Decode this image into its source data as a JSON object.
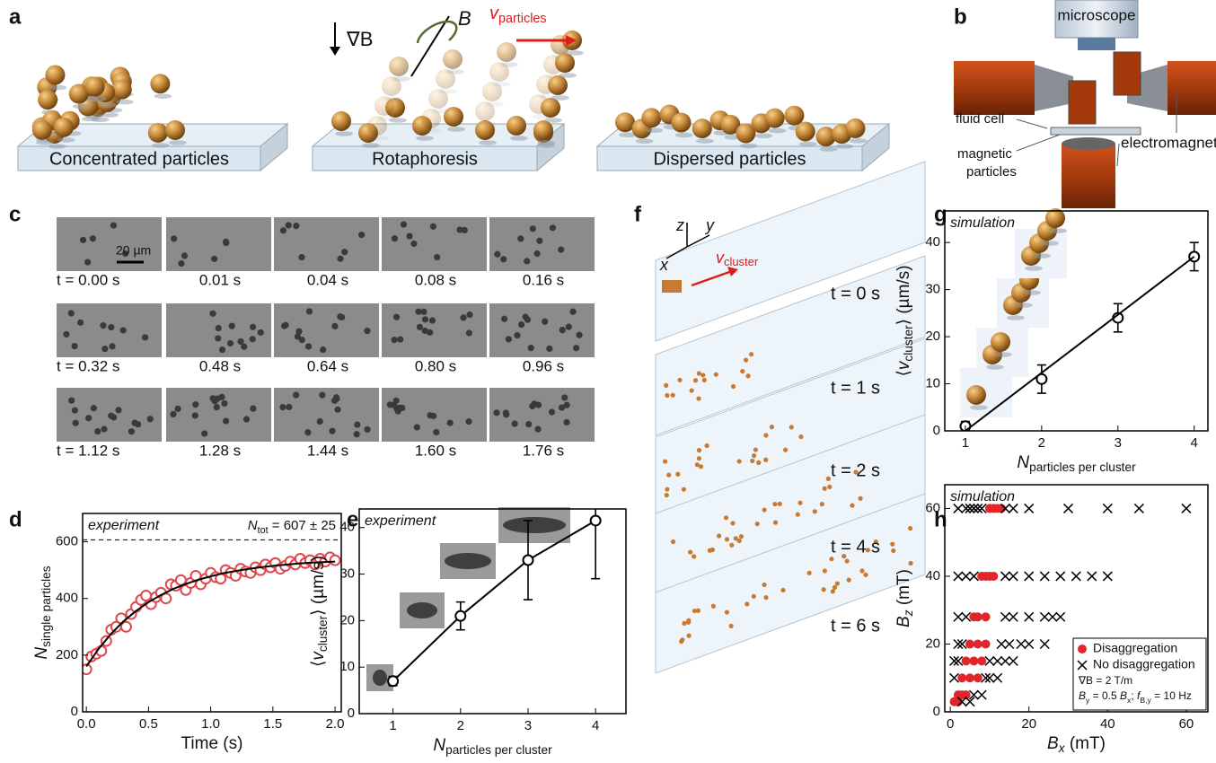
{
  "panel_labels": [
    "a",
    "b",
    "c",
    "d",
    "e",
    "f",
    "g",
    "h"
  ],
  "panel_a": {
    "slab_labels": [
      "Concentrated particles",
      "Rotaphoresis",
      "Dispersed particles"
    ],
    "gradient_label": [
      {
        "text": "∇"
      },
      {
        "text": "B"
      }
    ],
    "field_label": [
      {
        "text": "B",
        "italic": true
      }
    ],
    "velocity_label": [
      {
        "text": "v",
        "italic": true
      },
      {
        "text": "particles",
        "sub": true
      }
    ]
  },
  "panel_b": {
    "microscope": "microscope",
    "fluid_cell": "fluid cell",
    "magnetic_particles": [
      "magnetic",
      "particles"
    ],
    "electromagnet": "electromagnet"
  },
  "panel_c": {
    "scale_bar": "20 µm",
    "times": [
      "t = 0.00 s",
      "0.01 s",
      "0.04 s",
      "0.08 s",
      "0.16 s",
      "t = 0.32 s",
      "0.48 s",
      "0.64 s",
      "0.80 s",
      "0.96 s",
      "t = 1.12 s",
      "1.28 s",
      "1.44 s",
      "1.60 s",
      "1.76 s"
    ]
  },
  "panel_f": {
    "axes": [
      "z",
      "y",
      "x"
    ],
    "velocity_label": [
      {
        "text": "v",
        "italic": true
      },
      {
        "text": "cluster",
        "sub": true
      }
    ],
    "times": [
      "t = 0 s",
      "t = 1 s",
      "t = 2 s",
      "t = 4 s",
      "t = 6 s"
    ]
  },
  "chart_data": [
    {
      "type": "scatter",
      "annotations": [
        "experiment"
      ],
      "reference_label": [
        {
          "text": "N",
          "italic": true
        },
        {
          "text": "tot",
          "sub": true
        },
        {
          "text": " = 607 ± 25"
        }
      ],
      "reference_line": 607,
      "x_label": [
        {
          "text": "Time (s)"
        }
      ],
      "y_label": [
        {
          "text": "N",
          "italic": true
        },
        {
          "text": "single particles",
          "sub": true
        }
      ],
      "xlim": [
        -0.03,
        2.05
      ],
      "ylim": [
        0,
        700
      ],
      "xticks": [
        {
          "value": 0,
          "label": "0.0"
        },
        0.5,
        {
          "value": 1,
          "label": "1.0"
        },
        1.5,
        {
          "value": 2,
          "label": "2.0"
        }
      ],
      "yticks": [
        0,
        200,
        400,
        600
      ],
      "series": [
        {
          "color": "#e0474c",
          "marker": "open-circle",
          "x": [
            0,
            0.04,
            0.08,
            0.12,
            0.16,
            0.2,
            0.24,
            0.28,
            0.32,
            0.36,
            0.4,
            0.44,
            0.48,
            0.52,
            0.56,
            0.6,
            0.64,
            0.68,
            0.72,
            0.76,
            0.8,
            0.84,
            0.88,
            0.92,
            0.96,
            1.0,
            1.04,
            1.08,
            1.12,
            1.16,
            1.2,
            1.24,
            1.28,
            1.32,
            1.36,
            1.4,
            1.44,
            1.48,
            1.52,
            1.56,
            1.6,
            1.64,
            1.68,
            1.72,
            1.76,
            1.8,
            1.84,
            1.88,
            1.92,
            1.96,
            2.0
          ],
          "values": [
            150,
            195,
            205,
            215,
            250,
            290,
            300,
            330,
            300,
            345,
            370,
            395,
            410,
            380,
            405,
            420,
            400,
            450,
            445,
            465,
            430,
            455,
            480,
            450,
            470,
            490,
            475,
            470,
            500,
            490,
            480,
            505,
            495,
            490,
            510,
            500,
            520,
            510,
            525,
            505,
            515,
            530,
            520,
            540,
            525,
            535,
            520,
            540,
            530,
            545,
            535
          ]
        },
        {
          "color": "#000000",
          "style": "line",
          "x": [
            0,
            0.1,
            0.2,
            0.3,
            0.4,
            0.5,
            0.6,
            0.7,
            0.8,
            0.9,
            1.0,
            1.1,
            1.2,
            1.3,
            1.4,
            1.5,
            1.6,
            1.7,
            1.8,
            1.9,
            2.0
          ],
          "values": [
            160,
            223,
            276,
            320,
            356,
            387,
            412,
            434,
            451,
            466,
            478,
            489,
            497,
            504,
            510,
            515,
            519,
            523,
            526,
            528,
            530
          ]
        }
      ]
    },
    {
      "type": "line",
      "annotations": [
        "experiment"
      ],
      "x_label": [
        {
          "text": "N",
          "italic": true
        },
        {
          "text": "particles per cluster",
          "sub": true
        }
      ],
      "y_label": [
        {
          "text": "⟨"
        },
        {
          "text": "v",
          "italic": true
        },
        {
          "text": "cluster",
          "sub": true
        },
        {
          "text": "⟩ (µm/s)"
        }
      ],
      "xlim": [
        0.5,
        4.45
      ],
      "ylim": [
        0,
        44
      ],
      "xticks": [
        1,
        2,
        3,
        4
      ],
      "yticks": [
        0,
        10,
        20,
        30,
        40
      ],
      "series": [
        {
          "color": "#000000",
          "marker": "open-circle",
          "connect": true,
          "x": [
            1,
            2,
            3,
            4
          ],
          "values": [
            7,
            21,
            33,
            41.5
          ],
          "errors": [
            1,
            3,
            8.5,
            12.5
          ]
        }
      ]
    },
    {
      "type": "line",
      "annotations": [
        "simulation"
      ],
      "x_label": [
        {
          "text": "N",
          "italic": true
        },
        {
          "text": "particles per cluster",
          "sub": true
        }
      ],
      "y_label": [
        {
          "text": "⟨"
        },
        {
          "text": "v",
          "italic": true
        },
        {
          "text": "cluster",
          "sub": true
        },
        {
          "text": "⟩ (µm/s)"
        }
      ],
      "xlim": [
        0.73,
        4.18
      ],
      "ylim": [
        0,
        46.7
      ],
      "xticks": [
        1,
        2,
        3,
        4
      ],
      "yticks": [
        0,
        10,
        20,
        30,
        40
      ],
      "series": [
        {
          "color": "#000000",
          "marker": "open-circle",
          "x": [
            1,
            2,
            3,
            4
          ],
          "values": [
            1,
            11,
            24,
            37
          ],
          "errors": [
            1,
            3,
            3,
            3
          ]
        },
        {
          "color": "#000000",
          "style": "line",
          "x": [
            1,
            4
          ],
          "values": [
            0,
            37
          ]
        }
      ]
    },
    {
      "type": "scatter",
      "annotations": [
        "simulation"
      ],
      "x_label": [
        {
          "text": "B",
          "italic": true
        },
        {
          "text": "x",
          "sub": true,
          "italic": true
        },
        {
          "text": " (mT)"
        }
      ],
      "y_label": [
        {
          "text": "B",
          "italic": true
        },
        {
          "text": "z",
          "sub": true,
          "italic": true
        },
        {
          "text": " (mT)"
        }
      ],
      "xlim": [
        -1.4,
        65.5
      ],
      "ylim": [
        0,
        67
      ],
      "xticks": [
        0,
        20,
        40,
        60
      ],
      "yticks": [
        0,
        20,
        40,
        60
      ],
      "legend": "lower right",
      "legend_notes": [
        [
          {
            "text": "∇B = 2 T/m"
          }
        ],
        [
          {
            "text": "B",
            "italic": true
          },
          {
            "text": "y",
            "sub": true
          },
          {
            "text": " = 0.5 "
          },
          {
            "text": "B",
            "italic": true
          },
          {
            "text": "x",
            "sub": true
          },
          {
            "text": ";  "
          },
          {
            "text": "f",
            "italic": true
          },
          {
            "text": "B,y",
            "sub": true
          },
          {
            "text": " = 10 Hz"
          }
        ]
      ],
      "series": [
        {
          "name": "Disaggregation",
          "color": "#e0262b",
          "marker": "filled-circle",
          "x": [
            10,
            11,
            12,
            13,
            8,
            9,
            10,
            11,
            6,
            7,
            9,
            5,
            7,
            9,
            4,
            6,
            8,
            3,
            5,
            7,
            2,
            3,
            4,
            1,
            2
          ],
          "values": [
            60,
            60,
            60,
            60,
            40,
            40,
            40,
            40,
            28,
            28,
            28,
            20,
            20,
            20,
            15,
            15,
            15,
            10,
            10,
            10,
            5,
            5,
            5,
            3,
            3
          ]
        },
        {
          "name": "No disaggregation",
          "color": "#000000",
          "marker": "cross",
          "x": [
            2,
            4,
            5,
            6,
            7,
            8,
            14,
            16,
            20,
            30,
            40,
            48,
            60,
            2,
            4,
            6,
            14,
            16,
            20,
            24,
            28,
            32,
            36,
            40,
            2,
            4,
            14,
            16,
            20,
            24,
            26,
            28,
            2,
            3,
            13,
            15,
            18,
            20,
            24,
            1,
            2,
            10,
            12,
            14,
            16,
            1,
            9,
            10,
            12,
            6,
            8,
            3,
            5
          ],
          "values": [
            60,
            60,
            60,
            60,
            60,
            60,
            60,
            60,
            60,
            60,
            60,
            60,
            60,
            40,
            40,
            40,
            40,
            40,
            40,
            40,
            40,
            40,
            40,
            40,
            28,
            28,
            28,
            28,
            28,
            28,
            28,
            28,
            20,
            20,
            20,
            20,
            20,
            20,
            20,
            15,
            15,
            15,
            15,
            15,
            15,
            10,
            10,
            10,
            10,
            5,
            5,
            3,
            3
          ]
        }
      ]
    }
  ]
}
